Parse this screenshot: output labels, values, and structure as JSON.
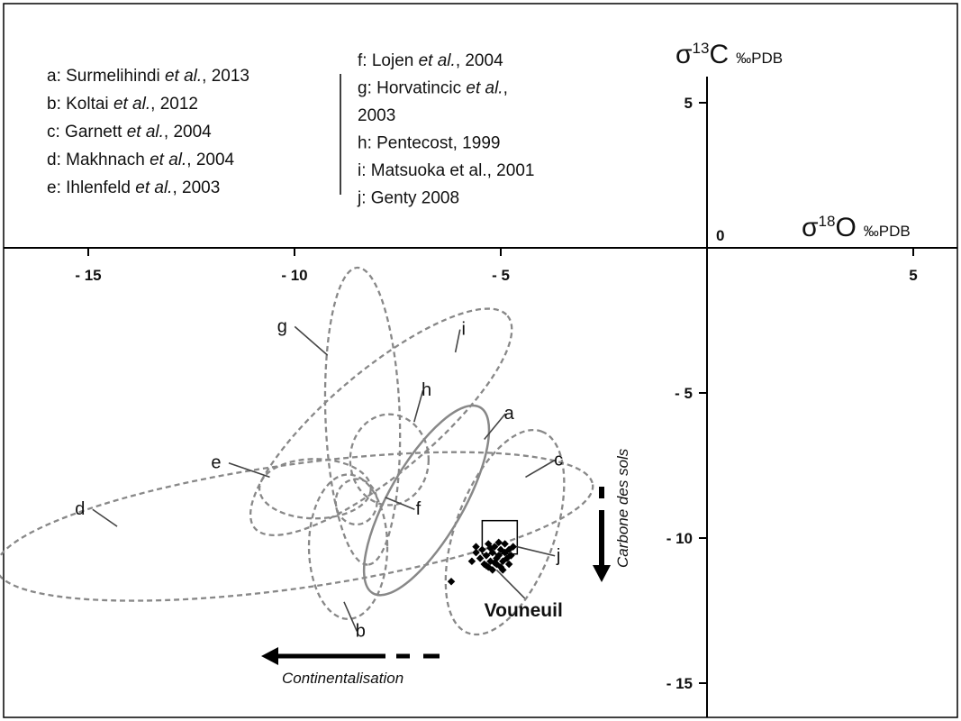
{
  "chart_data": {
    "type": "scatter",
    "title": "",
    "xaxis": {
      "label_main": "σ",
      "label_sup": "18",
      "label_element": "O",
      "label_unit": "‰PDB",
      "range": [
        -16,
        6
      ],
      "ticks": [
        -15,
        -10,
        -5,
        5
      ],
      "tick_labels": [
        "- 15",
        "- 10",
        "- 5",
        "5"
      ],
      "origin_label": "0"
    },
    "yaxis": {
      "label_main": "σ",
      "label_sup": "13",
      "label_element": "C",
      "label_unit": "‰PDB",
      "range": [
        -16,
        7
      ],
      "ticks": [
        5,
        -5,
        -10,
        -15
      ],
      "tick_labels": [
        "5",
        "- 5",
        "- 10",
        "- 15"
      ]
    },
    "grid": false,
    "references_left": [
      {
        "key": "a",
        "pre": "a: Surmelihindi ",
        "em": "et al.",
        "post": ", 2013"
      },
      {
        "key": "b",
        "pre": "b: Koltai ",
        "em": "et al.",
        "post": ", 2012"
      },
      {
        "key": "c",
        "pre": "c: Garnett ",
        "em": "et al.",
        "post": ", 2004"
      },
      {
        "key": "d",
        "pre": "d: Makhnach ",
        "em": "et al.",
        "post": ", 2004"
      },
      {
        "key": "e",
        "pre": "e: Ihlenfeld ",
        "em": "et al.",
        "post": ", 2003"
      }
    ],
    "references_right": [
      {
        "key": "f",
        "pre": "f: Lojen ",
        "em": "et al.",
        "post": ", 2004"
      },
      {
        "key": "g1",
        "pre": "g: Horvatincic ",
        "em": "et al.",
        "post": ","
      },
      {
        "key": "g2",
        "pre": "2003",
        "em": "",
        "post": ""
      },
      {
        "key": "h",
        "pre": "h: Pentecost, 1999",
        "em": "",
        "post": ""
      },
      {
        "key": "i",
        "pre": "i: Matsuoka et al., 2001",
        "em": "",
        "post": ""
      },
      {
        "key": "j",
        "pre": "j: Genty 2008",
        "em": "",
        "post": ""
      }
    ],
    "regions": [
      {
        "id": "d",
        "label": "d",
        "style": "dashed",
        "cx": -10.0,
        "cy": -9.6,
        "rx": 7.3,
        "ry": 1.5,
        "rot": -8,
        "label_at": [
          -15.2,
          -9.2
        ],
        "leader_to": [
          -14.3,
          -9.6
        ]
      },
      {
        "id": "e",
        "label": "e",
        "style": "dashed",
        "cx": -9.5,
        "cy": -8.3,
        "rx": 1.35,
        "ry": 0.72,
        "rot": 0,
        "label_at": [
          -11.9,
          -7.6
        ],
        "leader_to": [
          -10.6,
          -7.9
        ]
      },
      {
        "id": "g",
        "label": "g",
        "style": "dashed",
        "cx": -8.35,
        "cy": -5.8,
        "rx": 3.6,
        "ry": 0.9,
        "rot": 88,
        "label_at": [
          -10.3,
          -2.9
        ],
        "leader_to": [
          -9.2,
          -3.7
        ]
      },
      {
        "id": "i",
        "label": "i",
        "style": "dashed",
        "cx": -7.9,
        "cy": -6.0,
        "rx": 4.0,
        "ry": 1.25,
        "rot": -40,
        "label_at": [
          -5.9,
          -3.0
        ],
        "leader_to": [
          -6.1,
          -3.6
        ]
      },
      {
        "id": "h",
        "label": "h",
        "style": "dashed",
        "cx": -7.7,
        "cy": -7.3,
        "rx": 0.95,
        "ry": 1.1,
        "rot": 0,
        "label_at": [
          -6.8,
          -5.1
        ],
        "leader_to": [
          -7.1,
          -6.0
        ]
      },
      {
        "id": "f",
        "label": "f",
        "style": "dashed",
        "cx": -8.5,
        "cy": -8.75,
        "rx": 0.5,
        "ry": 0.55,
        "rot": 0,
        "label_at": [
          -7.0,
          -9.2
        ],
        "leader_to": [
          -7.8,
          -8.6
        ]
      },
      {
        "id": "b",
        "label": "b",
        "style": "dashed",
        "cx": -8.7,
        "cy": -10.3,
        "rx": 0.95,
        "ry": 1.75,
        "rot": 0,
        "label_at": [
          -8.4,
          -13.4
        ],
        "leader_to": [
          -8.8,
          -12.2
        ]
      },
      {
        "id": "a",
        "label": "a",
        "style": "solid",
        "cx": -6.8,
        "cy": -8.7,
        "rx": 2.6,
        "ry": 0.9,
        "rot": -60,
        "label_at": [
          -4.8,
          -5.9
        ],
        "leader_to": [
          -5.4,
          -6.6
        ]
      },
      {
        "id": "c",
        "label": "c",
        "style": "dashed",
        "cx": -4.9,
        "cy": -9.8,
        "rx": 2.6,
        "ry": 1.2,
        "rot": -70,
        "label_at": [
          -3.6,
          -7.5
        ],
        "leader_to": [
          -4.4,
          -7.9
        ]
      },
      {
        "id": "j",
        "label": "j",
        "style": "box",
        "x0": -5.45,
        "x1": -4.6,
        "y0": -9.4,
        "y1": -10.55,
        "label_at": [
          -3.6,
          -10.8
        ],
        "leader_to": [
          -4.6,
          -10.3
        ]
      }
    ],
    "vouneuil": {
      "label": "Vouneuil",
      "label_at": [
        -5.4,
        -12.7
      ],
      "leader_from": [
        -5.1,
        -11.1
      ],
      "points": [
        {
          "x": -5.6,
          "y": -10.5
        },
        {
          "x": -5.5,
          "y": -10.7
        },
        {
          "x": -5.45,
          "y": -10.4
        },
        {
          "x": -5.4,
          "y": -10.9
        },
        {
          "x": -5.35,
          "y": -10.6
        },
        {
          "x": -5.3,
          "y": -10.2
        },
        {
          "x": -5.3,
          "y": -11.0
        },
        {
          "x": -5.25,
          "y": -10.8
        },
        {
          "x": -5.2,
          "y": -10.5
        },
        {
          "x": -5.2,
          "y": -11.1
        },
        {
          "x": -5.15,
          "y": -10.3
        },
        {
          "x": -5.1,
          "y": -10.7
        },
        {
          "x": -5.1,
          "y": -10.9
        },
        {
          "x": -5.05,
          "y": -10.6
        },
        {
          "x": -5.0,
          "y": -10.4
        },
        {
          "x": -5.0,
          "y": -11.0
        },
        {
          "x": -4.95,
          "y": -10.8
        },
        {
          "x": -4.9,
          "y": -10.5
        },
        {
          "x": -4.9,
          "y": -10.2
        },
        {
          "x": -4.85,
          "y": -10.7
        },
        {
          "x": -4.8,
          "y": -10.9
        },
        {
          "x": -4.8,
          "y": -10.4
        },
        {
          "x": -4.75,
          "y": -10.6
        },
        {
          "x": -4.7,
          "y": -10.3
        },
        {
          "x": -5.35,
          "y": -10.95
        },
        {
          "x": -5.25,
          "y": -10.35
        },
        {
          "x": -5.15,
          "y": -10.85
        },
        {
          "x": -5.05,
          "y": -10.15
        },
        {
          "x": -4.95,
          "y": -11.1
        },
        {
          "x": -5.7,
          "y": -10.8
        },
        {
          "x": -5.6,
          "y": -10.3
        },
        {
          "x": -6.2,
          "y": -11.5
        }
      ]
    },
    "annotations": {
      "soil_carbon": "Carbone des sols",
      "continentalisation": "Continentalisation"
    }
  }
}
